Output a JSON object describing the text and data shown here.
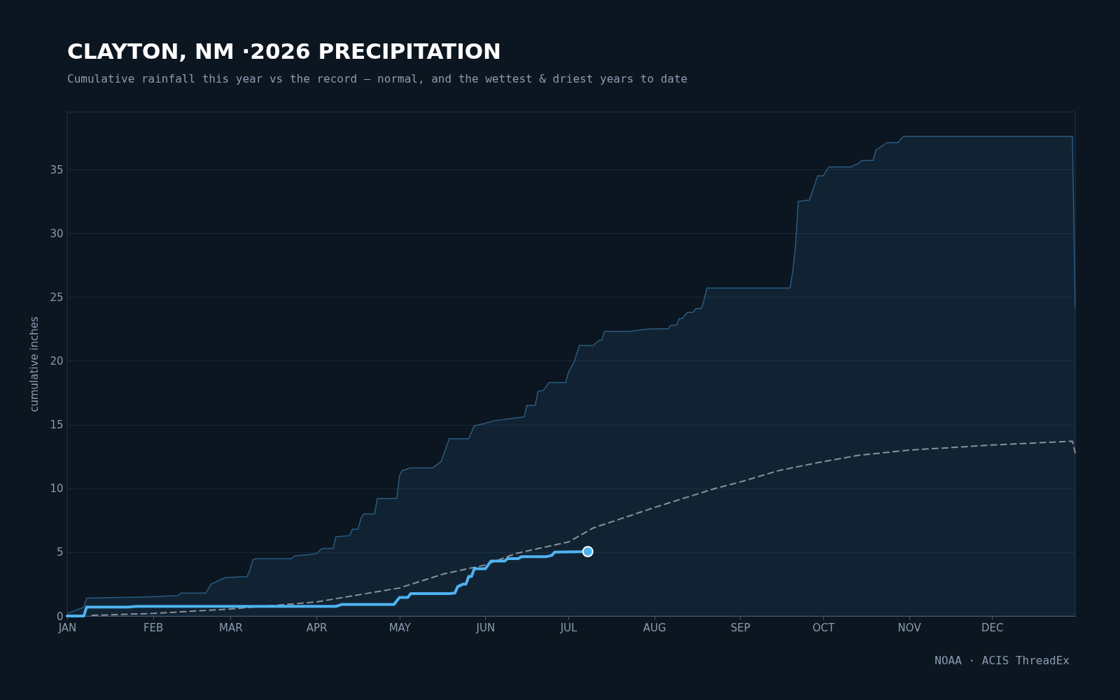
{
  "chart_data": {
    "type": "line",
    "title": "CLAYTON, NM ·2026 PRECIPITATION",
    "subtitle": "Cumulative rainfall this year vs the record — normal, and the wettest & driest years to date",
    "ylabel": "cumulative inches",
    "annotations": [
      "NOAA · ACIS ThreadEx"
    ],
    "xlim": [
      "2026-01-01",
      "2026-12-31"
    ],
    "xticks": [
      {
        "value": "2026-01-01",
        "label": "JAN"
      },
      {
        "value": "2026-02-01",
        "label": "FEB"
      },
      {
        "value": "2026-03-01",
        "label": "MAR"
      },
      {
        "value": "2026-04-01",
        "label": "APR"
      },
      {
        "value": "2026-05-01",
        "label": "MAY"
      },
      {
        "value": "2026-06-01",
        "label": "JUN"
      },
      {
        "value": "2026-07-01",
        "label": "JUL"
      },
      {
        "value": "2026-08-01",
        "label": "AUG"
      },
      {
        "value": "2026-09-01",
        "label": "SEP"
      },
      {
        "value": "2026-10-01",
        "label": "OCT"
      },
      {
        "value": "2026-11-01",
        "label": "NOV"
      },
      {
        "value": "2026-12-01",
        "label": "DEC"
      }
    ],
    "ylim": [
      0,
      39.5
    ],
    "yticks": [
      0,
      5,
      10,
      15,
      20,
      25,
      30,
      35
    ],
    "grid": "y",
    "series": [
      {
        "type": "area",
        "color": "#2a5b82",
        "x": [
          "2026-01-01",
          "2026-01-06",
          "2026-01-07",
          "2026-01-08",
          "2026-01-30",
          "2026-02-10",
          "2026-02-11",
          "2026-02-20",
          "2026-02-22",
          "2026-02-27",
          "2026-03-07",
          "2026-03-08",
          "2026-03-09",
          "2026-03-10",
          "2026-03-23",
          "2026-03-24",
          "2026-03-29",
          "2026-04-01",
          "2026-04-03",
          "2026-04-07",
          "2026-04-08",
          "2026-04-13",
          "2026-04-14",
          "2026-04-16",
          "2026-04-17",
          "2026-04-18",
          "2026-04-22",
          "2026-04-23",
          "2026-04-30",
          "2026-05-01",
          "2026-05-02",
          "2026-05-05",
          "2026-05-13",
          "2026-05-16",
          "2026-05-17",
          "2026-05-19",
          "2026-05-26",
          "2026-05-28",
          "2026-06-01",
          "2026-06-04",
          "2026-06-11",
          "2026-06-15",
          "2026-06-16",
          "2026-06-19",
          "2026-06-20",
          "2026-06-22",
          "2026-06-24",
          "2026-06-30",
          "2026-07-01",
          "2026-07-03",
          "2026-07-05",
          "2026-07-10",
          "2026-07-12",
          "2026-07-13",
          "2026-07-14",
          "2026-07-23",
          "2026-07-26",
          "2026-07-31",
          "2026-08-06",
          "2026-08-07",
          "2026-08-09",
          "2026-08-10",
          "2026-08-11",
          "2026-08-13",
          "2026-08-15",
          "2026-08-16",
          "2026-08-18",
          "2026-08-19",
          "2026-08-20",
          "2026-09-19",
          "2026-09-20",
          "2026-09-21",
          "2026-09-22",
          "2026-09-26",
          "2026-09-29",
          "2026-10-01",
          "2026-10-03",
          "2026-10-11",
          "2026-10-14",
          "2026-10-15",
          "2026-10-19",
          "2026-10-20",
          "2026-10-22",
          "2026-10-24",
          "2026-10-28",
          "2026-10-30",
          "2026-12-30",
          "2026-12-31"
        ],
        "values": [
          0.2,
          0.6,
          0.7,
          1.4,
          1.5,
          1.6,
          1.8,
          1.8,
          2.5,
          3.0,
          3.1,
          3.6,
          4.4,
          4.5,
          4.5,
          4.7,
          4.8,
          4.9,
          5.3,
          5.3,
          6.2,
          6.3,
          6.8,
          6.8,
          7.6,
          8.0,
          8.0,
          9.2,
          9.2,
          11.0,
          11.4,
          11.6,
          11.6,
          12.1,
          12.7,
          13.9,
          13.9,
          14.9,
          15.1,
          15.3,
          15.5,
          15.6,
          16.5,
          16.5,
          17.6,
          17.7,
          18.3,
          18.3,
          19.1,
          19.9,
          21.2,
          21.2,
          21.6,
          21.6,
          22.3,
          22.3,
          22.4,
          22.5,
          22.5,
          22.8,
          22.8,
          23.3,
          23.3,
          23.8,
          23.8,
          24.1,
          24.1,
          24.8,
          25.7,
          25.7,
          27.0,
          29.0,
          32.5,
          32.6,
          34.5,
          34.5,
          35.2,
          35.2,
          35.5,
          35.7,
          35.7,
          36.5,
          36.8,
          37.1,
          37.1,
          37.6,
          37.6,
          24.2
        ]
      },
      {
        "type": "line",
        "color": "#8a9099",
        "line_style": "dashed",
        "x": [
          "2026-01-10",
          "2026-02-01",
          "2026-03-01",
          "2026-04-01",
          "2026-05-01",
          "2026-05-17",
          "2026-06-01",
          "2026-06-12",
          "2026-07-01",
          "2026-07-10",
          "2026-08-01",
          "2026-08-23",
          "2026-09-01",
          "2026-09-15",
          "2026-10-01",
          "2026-10-14",
          "2026-11-01",
          "2026-12-01",
          "2026-12-30",
          "2026-12-31"
        ],
        "values": [
          0.05,
          0.2,
          0.55,
          1.1,
          2.2,
          3.3,
          4.0,
          4.9,
          5.8,
          6.9,
          8.5,
          10.0,
          10.5,
          11.4,
          12.1,
          12.6,
          13.0,
          13.4,
          13.7,
          12.8
        ]
      },
      {
        "type": "line",
        "color": "#4fb3f0",
        "line_style": "solid",
        "x": [
          "2026-01-01",
          "2026-01-07",
          "2026-01-08",
          "2026-01-23",
          "2026-01-26",
          "2026-04-08",
          "2026-04-10",
          "2026-04-29",
          "2026-05-01",
          "2026-05-04",
          "2026-05-05",
          "2026-05-19",
          "2026-05-21",
          "2026-05-22",
          "2026-05-24",
          "2026-05-25",
          "2026-05-26",
          "2026-05-27",
          "2026-05-28",
          "2026-06-01",
          "2026-06-03",
          "2026-06-08",
          "2026-06-09",
          "2026-06-13",
          "2026-06-14",
          "2026-06-23",
          "2026-06-25",
          "2026-06-26",
          "2026-07-08"
        ],
        "values": [
          0,
          0,
          0.7,
          0.7,
          0.75,
          0.75,
          0.9,
          0.9,
          1.45,
          1.45,
          1.75,
          1.75,
          1.8,
          2.3,
          2.5,
          2.5,
          3.1,
          3.1,
          3.7,
          3.7,
          4.3,
          4.3,
          4.5,
          4.5,
          4.65,
          4.65,
          4.75,
          5.0,
          5.05
        ]
      },
      {
        "type": "scatter",
        "color": "#4fb3f0",
        "marker": "circle",
        "x": [
          "2026-07-08"
        ],
        "values": [
          5.05
        ]
      }
    ]
  }
}
